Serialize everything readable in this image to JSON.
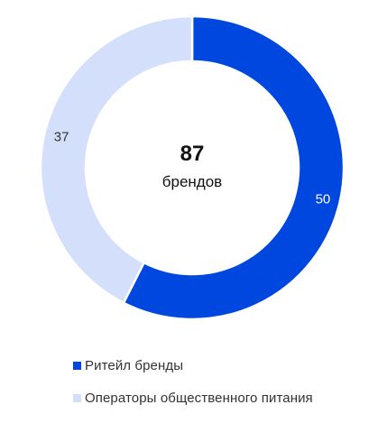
{
  "chart_data": {
    "type": "pie",
    "variant": "donut",
    "center_value": "87",
    "center_label": "брендов",
    "categories": [
      "Ритейл бренды",
      "Операторы общественного питания"
    ],
    "values": [
      50,
      37
    ],
    "colors": [
      "#0047E0",
      "#D4E0FB"
    ],
    "label_colors": [
      "#ffffff",
      "#333333"
    ],
    "legend_position": "bottom-left",
    "start": "top",
    "direction": "clockwise"
  }
}
